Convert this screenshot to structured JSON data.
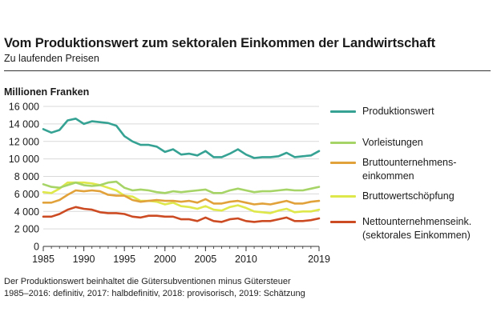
{
  "header": {
    "title": "Vom Produktionswert zum sektoralen Einkommen der Landwirtschaft",
    "subtitle": "Zu laufenden Preisen",
    "unit_label": "Millionen Franken"
  },
  "footnotes": [
    "Der Produktionswert beinhaltet die Gütersubventionen minus Gütersteuer",
    "1985–2016: definitiv, 2017: halbdefinitiv, 2018: provisorisch, 2019: Schätzung"
  ],
  "chart_data": {
    "type": "line",
    "xlim": [
      1985,
      2019
    ],
    "ylim": [
      0,
      16000
    ],
    "grid": true,
    "legend_position": "right",
    "y_ticks": [
      0,
      2000,
      4000,
      6000,
      8000,
      10000,
      12000,
      14000,
      16000
    ],
    "y_tick_labels": [
      "0",
      "2 000",
      "4 000",
      "6 000",
      "8 000",
      "10 000",
      "12 000",
      "14 000",
      "16 000"
    ],
    "x_ticks": [
      1985,
      1990,
      1995,
      2000,
      2005,
      2010,
      2019
    ],
    "x_tick_labels": [
      "1985",
      "1990",
      "1995",
      "2000",
      "2005",
      "2010",
      "2019"
    ],
    "x": [
      1985,
      1986,
      1987,
      1988,
      1989,
      1990,
      1991,
      1992,
      1993,
      1994,
      1995,
      1996,
      1997,
      1998,
      1999,
      2000,
      2001,
      2002,
      2003,
      2004,
      2005,
      2006,
      2007,
      2008,
      2009,
      2010,
      2011,
      2012,
      2013,
      2014,
      2015,
      2016,
      2017,
      2018,
      2019
    ],
    "series": [
      {
        "name": "Produktionswert",
        "color": "#35a294",
        "values": [
          13400,
          13000,
          13300,
          14400,
          14600,
          14000,
          14300,
          14200,
          14100,
          13800,
          12600,
          12000,
          11600,
          11600,
          11400,
          10800,
          11100,
          10500,
          10600,
          10400,
          10900,
          10200,
          10200,
          10600,
          11100,
          10500,
          10100,
          10200,
          10200,
          10300,
          10700,
          10200,
          10300,
          10400,
          10900
        ]
      },
      {
        "name": "Vorleistungen",
        "color": "#a6d467",
        "values": [
          7100,
          6800,
          6700,
          7000,
          7300,
          7000,
          6900,
          7000,
          7300,
          7400,
          6700,
          6400,
          6500,
          6400,
          6200,
          6100,
          6300,
          6200,
          6300,
          6400,
          6500,
          6100,
          6100,
          6400,
          6600,
          6400,
          6200,
          6300,
          6300,
          6400,
          6500,
          6400,
          6400,
          6600,
          6800
        ]
      },
      {
        "name": "Bruttounternehmens-\neinkommen",
        "color": "#e2a23b",
        "values": [
          5000,
          5000,
          5300,
          5900,
          6400,
          6300,
          6400,
          6300,
          5900,
          5800,
          5800,
          5300,
          5100,
          5200,
          5300,
          5200,
          5200,
          5100,
          5200,
          5000,
          5400,
          4900,
          4900,
          5100,
          5200,
          5000,
          4800,
          4900,
          4800,
          5000,
          5200,
          4900,
          4900,
          5100,
          5200
        ]
      },
      {
        "name": "Bruttowertschöpfung",
        "color": "#dfe84a",
        "values": [
          6200,
          6100,
          6600,
          7300,
          7300,
          7300,
          7200,
          7000,
          6700,
          6400,
          5800,
          5700,
          5200,
          5200,
          5100,
          4800,
          5000,
          4600,
          4500,
          4300,
          4600,
          4200,
          4100,
          4500,
          4700,
          4400,
          4000,
          3900,
          3800,
          4100,
          4300,
          3900,
          4000,
          4000,
          4200
        ]
      },
      {
        "name": "Nettounternehmenseink.\n(sektorales Einkommen)",
        "color": "#cc4b22",
        "values": [
          3400,
          3400,
          3700,
          4200,
          4500,
          4300,
          4200,
          3900,
          3800,
          3800,
          3700,
          3400,
          3300,
          3500,
          3500,
          3400,
          3400,
          3100,
          3100,
          2900,
          3300,
          2900,
          2800,
          3100,
          3200,
          2900,
          2800,
          2900,
          2900,
          3100,
          3300,
          2900,
          2900,
          3000,
          3200
        ]
      }
    ]
  }
}
